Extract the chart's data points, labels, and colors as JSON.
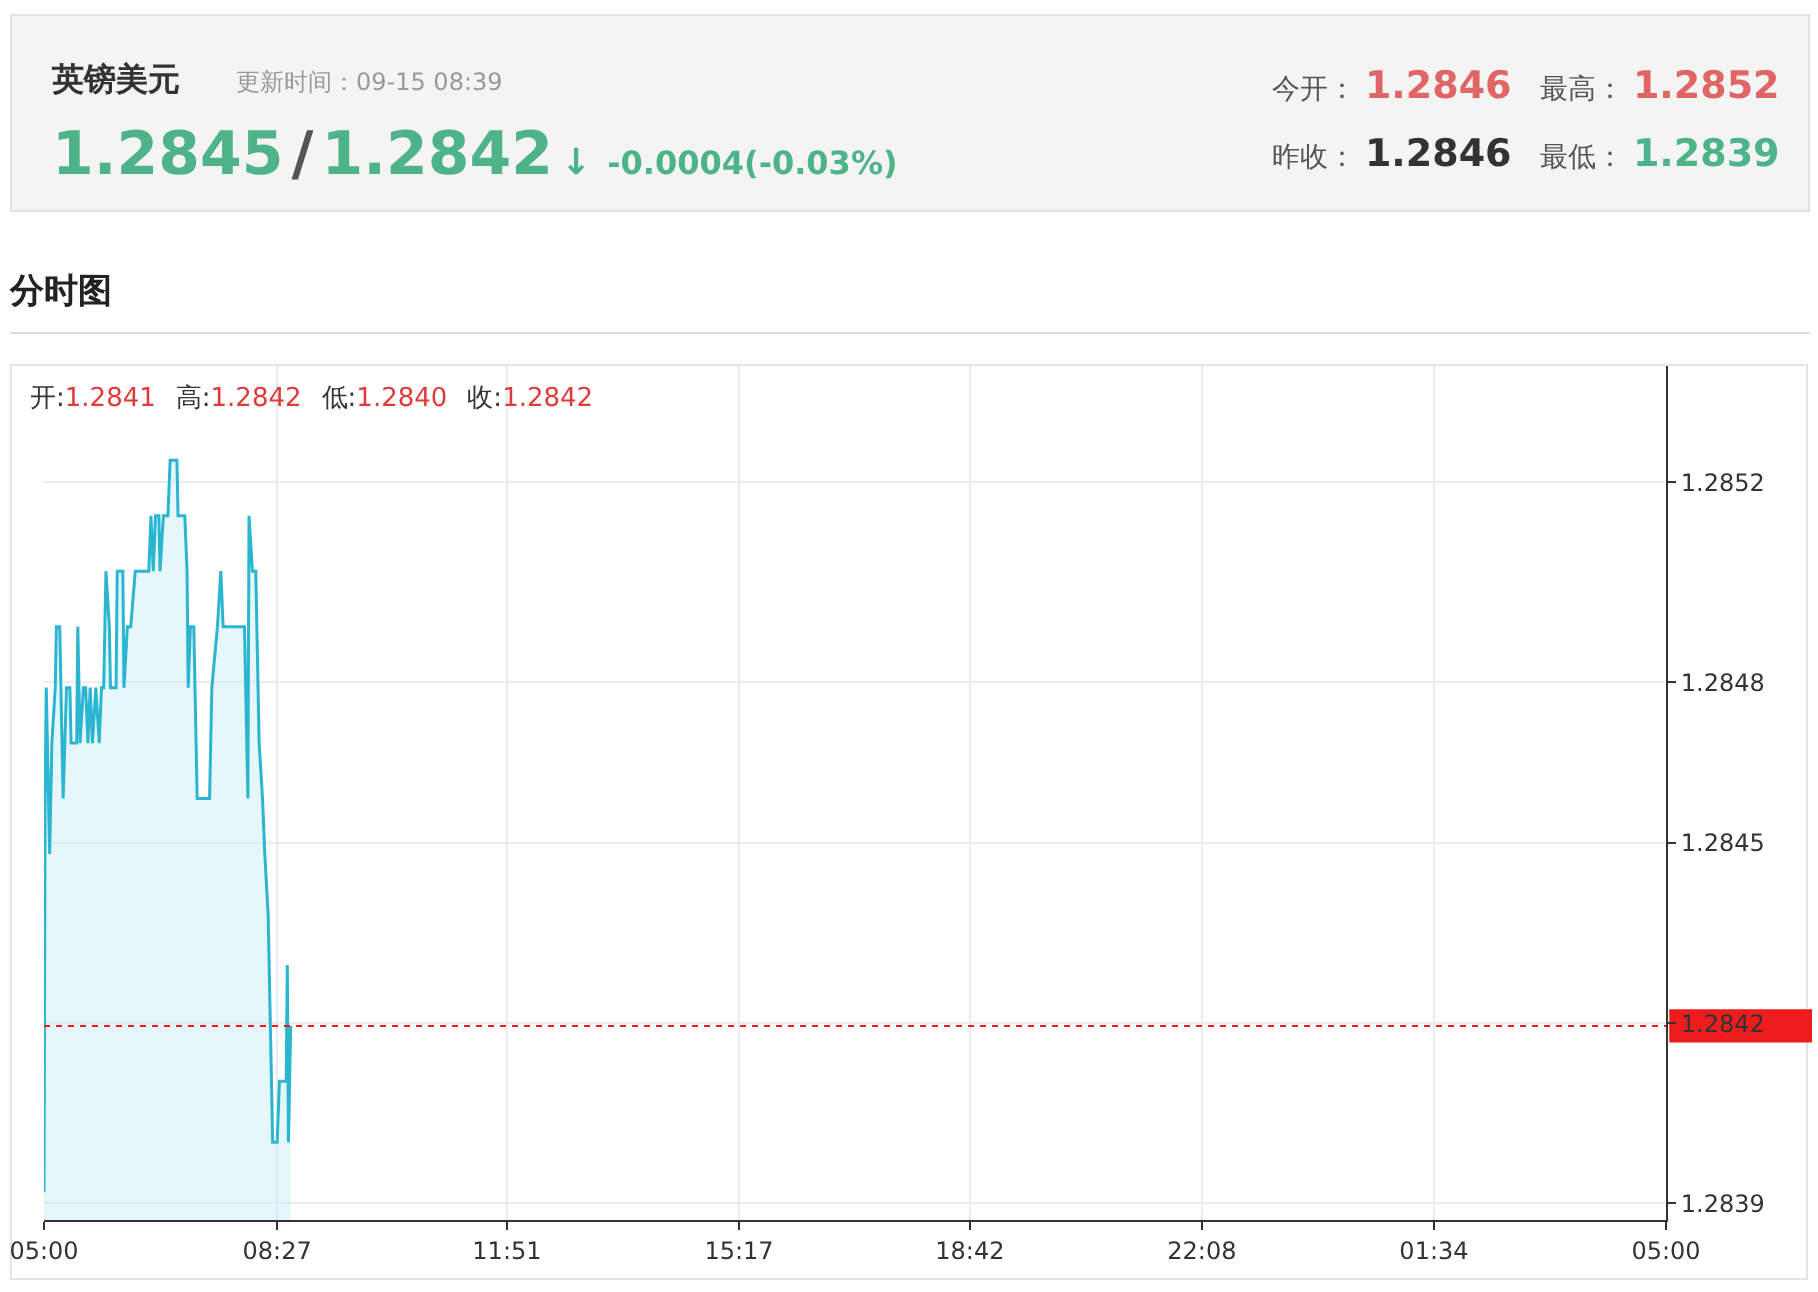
{
  "chart_data": [
    {
      "type": "other",
      "title": "英镑美元",
      "subtitle": "更新时间：09-15 08:39",
      "annotations": [
        "1.2845",
        "/",
        "1.2842",
        "↓",
        "-0.0004(-0.03%)",
        "今开：",
        "1.2846",
        "最高：",
        "1.2852",
        "昨收：",
        "1.2846",
        "最低：",
        "1.2839"
      ]
    },
    {
      "type": "area",
      "title": "分时图",
      "annotations": [
        "开:",
        "1.2841",
        "高:",
        "1.2842",
        "低:",
        "1.2840",
        "收:",
        "1.2842"
      ],
      "series": [
        {
          "color": "#2bb5d0",
          "x": [
            "--09-15T05:00",
            "--09-15T05:01",
            "--09-15T05:02",
            "--09-15T05:05",
            "--09-15T05:07",
            "--09-15T05:10",
            "--09-15T05:11",
            "--09-15T05:14",
            "--09-15T05:16",
            "--09-15T05:17",
            "--09-15T05:20",
            "--09-15T05:23",
            "--09-15T05:24",
            "--09-15T05:29",
            "--09-15T05:30",
            "--09-15T05:32",
            "--09-15T05:35",
            "--09-15T05:37",
            "--09-15T05:39",
            "--09-15T05:41",
            "--09-15T05:43",
            "--09-15T05:46",
            "--09-15T05:49",
            "--09-15T05:51",
            "--09-15T05:53",
            "--09-15T05:55",
            "--09-15T05:58",
            "--09-15T05:59",
            "--09-15T06:04",
            "--09-15T06:05",
            "--09-15T06:10",
            "--09-15T06:11",
            "--09-15T06:14",
            "--09-15T06:17",
            "--09-15T06:21",
            "--09-15T06:33",
            "--09-15T06:35",
            "--09-15T06:37",
            "--09-15T06:39",
            "--09-15T06:42",
            "--09-15T06:43",
            "--09-15T06:46",
            "--09-15T06:50",
            "--09-15T06:52",
            "--09-15T06:58",
            "--09-15T06:59",
            "--09-15T07:05",
            "--09-15T07:07",
            "--09-15T07:08",
            "--09-15T07:10",
            "--09-15T07:13",
            "--09-15T07:16",
            "--09-15T07:27",
            "--09-15T07:29",
            "--09-15T07:34",
            "--09-15T07:37",
            "--09-15T07:39",
            "--09-15T07:58",
            "--09-15T08:01",
            "--09-15T08:02",
            "--09-15T08:05",
            "--09-15T08:08",
            "--09-15T08:11",
            "--09-15T08:14",
            "--09-15T08:16",
            "--09-15T08:19",
            "--09-15T08:23",
            "--09-15T08:27",
            "--09-15T08:29",
            "--09-15T08:35",
            "--09-15T08:36",
            "--09-15T08:37",
            "--09-15T08:39"
          ],
          "values": [
            1.28392,
            1.28463,
            1.28483,
            1.28453,
            1.28473,
            1.28483,
            1.28494,
            1.28494,
            1.28473,
            1.28463,
            1.28483,
            1.28483,
            1.28473,
            1.28473,
            1.28494,
            1.28473,
            1.28483,
            1.28483,
            1.28473,
            1.28483,
            1.28473,
            1.28483,
            1.28473,
            1.28483,
            1.28483,
            1.28504,
            1.28494,
            1.28483,
            1.28483,
            1.28504,
            1.28504,
            1.28483,
            1.28494,
            1.28494,
            1.28504,
            1.28504,
            1.28514,
            1.28504,
            1.28514,
            1.28514,
            1.28504,
            1.28514,
            1.28514,
            1.28524,
            1.28524,
            1.28514,
            1.28514,
            1.28504,
            1.28483,
            1.28494,
            1.28494,
            1.28463,
            1.28463,
            1.28483,
            1.28494,
            1.28504,
            1.28494,
            1.28494,
            1.28463,
            1.28514,
            1.28504,
            1.28504,
            1.28473,
            1.28463,
            1.28453,
            1.28442,
            1.28401,
            1.28401,
            1.28412,
            1.28412,
            1.28433,
            1.28401,
            1.28422
          ]
        }
      ],
      "xlim": [
        "--09-15T05:00",
        "--09-16T05:00"
      ],
      "xticks": [
        {
          "value": "--09-15T05:00",
          "label": "05:00"
        },
        {
          "value": "--09-15T08:27",
          "label": "08:27"
        },
        {
          "value": "--09-15T11:51",
          "label": "11:51"
        },
        {
          "value": "--09-15T15:17",
          "label": "15:17"
        },
        {
          "value": "--09-15T18:42",
          "label": "18:42"
        },
        {
          "value": "--09-15T22:08",
          "label": "22:08"
        },
        {
          "value": "--09-16T01:34",
          "label": "01:34"
        },
        {
          "value": "--09-16T05:00",
          "label": "05:00"
        }
      ],
      "ylim": [
        1.28387,
        1.28541
      ],
      "yticks": [
        {
          "value": 1.2839,
          "label": "1.2839"
        },
        {
          "value": 1.284225,
          "label": "1.2842"
        },
        {
          "value": 1.28455,
          "label": "1.2845"
        },
        {
          "value": 1.28484,
          "label": "1.2848"
        },
        {
          "value": 1.2852,
          "label": "1.2852"
        }
      ],
      "ref_lines": [
        {
          "axis": "y",
          "value": 1.28422,
          "color": "#ee1c1c",
          "line_style": "dotted"
        }
      ],
      "grid": true,
      "marker": "none",
      "line_style": "solid"
    }
  ]
}
